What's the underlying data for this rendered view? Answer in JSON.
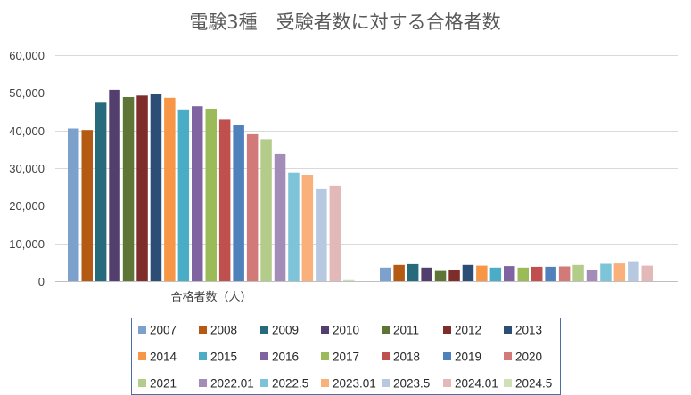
{
  "chart_data": {
    "type": "bar",
    "title": "電験3種　受験者数に対する合格者数",
    "categories": [
      "合格者数（人）",
      ""
    ],
    "yticks": [
      "0",
      "10,000",
      "20,000",
      "30,000",
      "40,000",
      "50,000",
      "60,000"
    ],
    "ylim": [
      0,
      60000
    ],
    "grid": true,
    "legend_position": "bottom",
    "series": [
      {
        "name": "2007",
        "color": "#7ba1cc",
        "values": [
          40500,
          3600
        ]
      },
      {
        "name": "2008",
        "color": "#b55a13",
        "values": [
          40100,
          4300
        ]
      },
      {
        "name": "2009",
        "color": "#276a7c",
        "values": [
          47400,
          4500
        ]
      },
      {
        "name": "2010",
        "color": "#523f6e",
        "values": [
          50800,
          3600
        ]
      },
      {
        "name": "2011",
        "color": "#5e7535",
        "values": [
          48900,
          2700
        ]
      },
      {
        "name": "2012",
        "color": "#7e2d2b",
        "values": [
          49300,
          2900
        ]
      },
      {
        "name": "2013",
        "color": "#2c4d75",
        "values": [
          49600,
          4300
        ]
      },
      {
        "name": "2014",
        "color": "#f79646",
        "values": [
          48700,
          4100
        ]
      },
      {
        "name": "2015",
        "color": "#4bacc6",
        "values": [
          45400,
          3600
        ]
      },
      {
        "name": "2016",
        "color": "#8064a2",
        "values": [
          46500,
          4000
        ]
      },
      {
        "name": "2017",
        "color": "#9bbb59",
        "values": [
          45600,
          3600
        ]
      },
      {
        "name": "2018",
        "color": "#c0504d",
        "values": [
          42900,
          3800
        ]
      },
      {
        "name": "2019",
        "color": "#4f81bd",
        "values": [
          41500,
          3800
        ]
      },
      {
        "name": "2020",
        "color": "#d27a78",
        "values": [
          39000,
          3900
        ]
      },
      {
        "name": "2021",
        "color": "#b3cc8a",
        "values": [
          37700,
          4300
        ]
      },
      {
        "name": "2022.01",
        "color": "#a38db8",
        "values": [
          33800,
          2900
        ]
      },
      {
        "name": "2022.5",
        "color": "#7ec4d8",
        "values": [
          28900,
          4600
        ]
      },
      {
        "name": "2023.01",
        "color": "#f9b07a",
        "values": [
          28100,
          4700
        ]
      },
      {
        "name": "2023.5",
        "color": "#b7c8e1",
        "values": [
          24600,
          5300
        ]
      },
      {
        "name": "2024.01",
        "color": "#e2b9b8",
        "values": [
          25300,
          4100
        ]
      },
      {
        "name": "2024.5",
        "color": "#cfe0b7",
        "values": [
          300,
          0
        ]
      }
    ]
  }
}
